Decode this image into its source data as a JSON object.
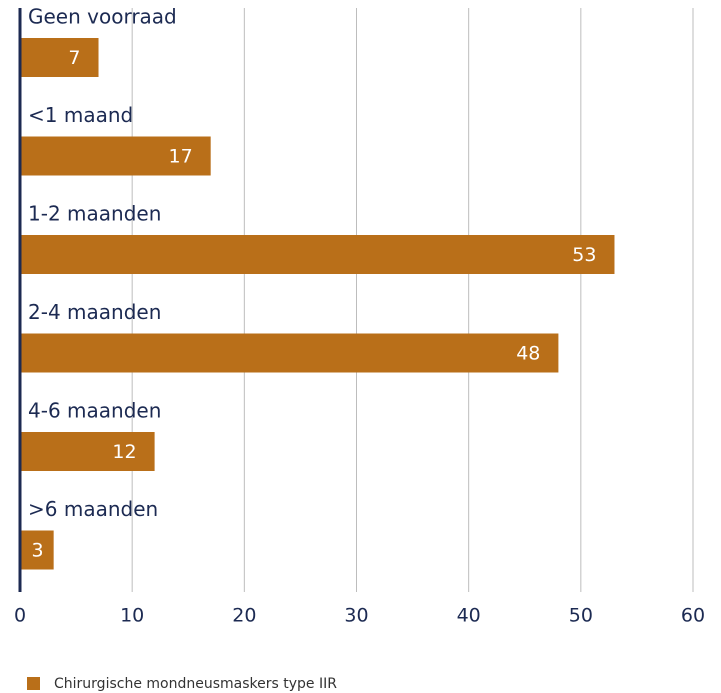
{
  "chart_data": {
    "type": "barh",
    "categories": [
      "Geen voorraad",
      "<1 maand",
      "1-2 maanden",
      "2-4 maanden",
      "4-6 maanden",
      ">6 maanden"
    ],
    "series": [
      {
        "name": "Chirurgische mondneusmaskers type IIR",
        "color": "#b96f19",
        "values": [
          7,
          17,
          53,
          48,
          12,
          3
        ]
      }
    ],
    "xlim": [
      0,
      60
    ],
    "xticks": [
      0,
      10,
      20,
      30,
      40,
      50,
      60
    ],
    "grid": true,
    "legend": "bottom-left"
  }
}
